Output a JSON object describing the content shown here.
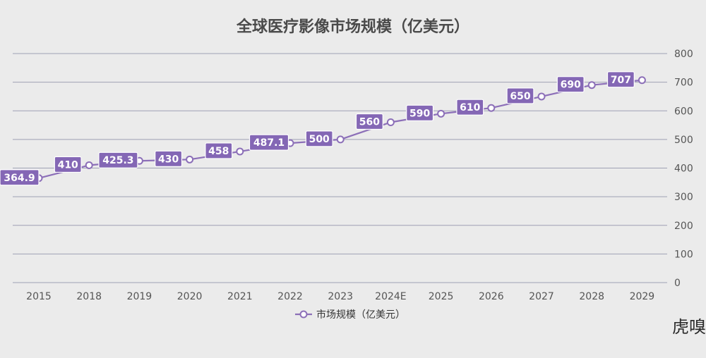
{
  "chart_data": {
    "type": "line",
    "title": "全球医疗影像市场规模（亿美元）",
    "categories": [
      "2015",
      "2018",
      "2019",
      "2020",
      "2021",
      "2022",
      "2023",
      "2024E",
      "2025",
      "2026",
      "2027",
      "2028",
      "2029"
    ],
    "series": [
      {
        "name": "市场规模（亿美元）",
        "values": [
          364.9,
          410,
          425.3,
          430,
          458,
          487.1,
          500,
          560,
          590,
          610,
          650,
          690,
          707
        ],
        "labels": [
          "364.9",
          "410",
          "425.3",
          "430",
          "458",
          "487.1",
          "500",
          "560",
          "590",
          "610",
          "650",
          "690",
          "707"
        ]
      }
    ],
    "ylim": [
      0,
      800
    ],
    "yticks": [
      "0",
      "100",
      "200",
      "300",
      "400",
      "500",
      "600",
      "700",
      "800"
    ],
    "grid": true,
    "legend_position": "bottom-center",
    "colors": {
      "series": "#8c6fb8",
      "label_bg": "#8467b5",
      "grid": "#9ea0b4"
    },
    "watermark": "虎嗅"
  }
}
